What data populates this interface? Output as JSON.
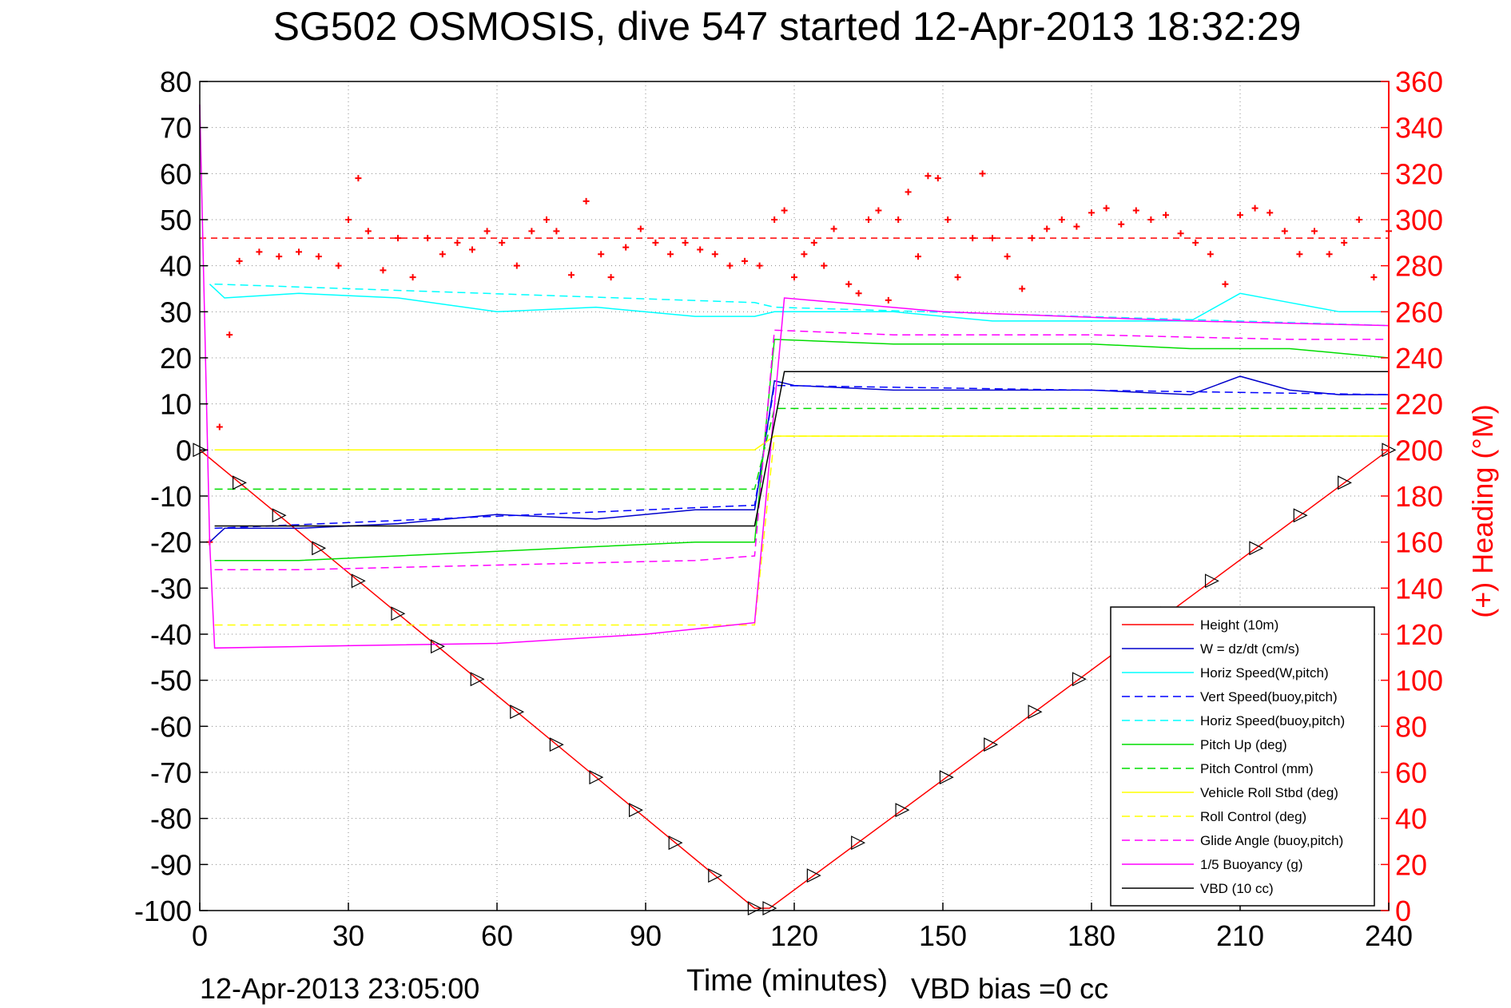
{
  "chart_data": {
    "type": "line",
    "title": "SG502 OSMOSIS, dive 547 started 12-Apr-2013 18:32:29",
    "xlabel": "Time (minutes)",
    "ylabel_right": "(+) Heading (°M)",
    "footer_left": "12-Apr-2013 23:05:00",
    "footer_right": "VBD bias =0 cc",
    "xlim": [
      0,
      240
    ],
    "ylim_left": [
      -100,
      80
    ],
    "ylim_right": [
      0,
      360
    ],
    "xticks": [
      0,
      30,
      60,
      90,
      120,
      150,
      180,
      210,
      240
    ],
    "yticks_left": [
      80,
      70,
      60,
      50,
      40,
      30,
      20,
      10,
      0,
      -10,
      -20,
      -30,
      -40,
      -50,
      -60,
      -70,
      -80,
      -90,
      -100
    ],
    "yticks_right": [
      360,
      340,
      320,
      300,
      280,
      260,
      240,
      220,
      200,
      180,
      160,
      140,
      120,
      100,
      80,
      60,
      40,
      20,
      0
    ],
    "grid": true,
    "legend_position": "bottom-right",
    "colors": {
      "heading_axis": "#ff0000"
    },
    "series": [
      {
        "name": "Height (10m)",
        "color": "#ff0000",
        "dash": "solid",
        "x": [
          0,
          112,
          115,
          240
        ],
        "y": [
          0,
          -99.5,
          -99.5,
          0
        ]
      },
      {
        "name": "W = dz/dt (cm/s)",
        "color": "#0000cc",
        "dash": "solid",
        "x": [
          2,
          5,
          20,
          40,
          60,
          80,
          100,
          112,
          116,
          120,
          140,
          160,
          180,
          200,
          210,
          220,
          230,
          240
        ],
        "y": [
          -20,
          -17,
          -17,
          -16,
          -14,
          -15,
          -13,
          -13,
          15,
          14,
          13,
          13,
          13,
          12,
          16,
          13,
          12,
          12
        ]
      },
      {
        "name": "Horiz Speed(W,pitch)",
        "color": "#00ffff",
        "dash": "solid",
        "x": [
          2,
          5,
          20,
          40,
          60,
          80,
          100,
          112,
          116,
          120,
          140,
          160,
          180,
          200,
          210,
          220,
          230,
          240
        ],
        "y": [
          36,
          33,
          34,
          33,
          30,
          31,
          29,
          29,
          30,
          30,
          30,
          28,
          28,
          28,
          34,
          32,
          30,
          30
        ]
      },
      {
        "name": "Vert Speed(buoy,pitch)",
        "color": "#0000ff",
        "dash": "dashed",
        "x": [
          3,
          112,
          116,
          240
        ],
        "y": [
          -17,
          -12,
          14,
          12
        ]
      },
      {
        "name": "Horiz Speed(buoy,pitch)",
        "color": "#00ffff",
        "dash": "dashed",
        "x": [
          3,
          112,
          116,
          240
        ],
        "y": [
          36,
          32,
          31,
          27
        ]
      },
      {
        "name": "Pitch Up (deg)",
        "color": "#00dd00",
        "dash": "solid",
        "x": [
          3,
          20,
          40,
          60,
          80,
          100,
          112,
          116,
          140,
          160,
          180,
          200,
          220,
          240
        ],
        "y": [
          -24,
          -24,
          -23,
          -22,
          -21,
          -20,
          -20,
          24,
          23,
          23,
          23,
          22,
          22,
          20
        ]
      },
      {
        "name": "Pitch Control (mm)",
        "color": "#00dd00",
        "dash": "dashed",
        "x": [
          3,
          112,
          116,
          240
        ],
        "y": [
          -8.5,
          -8.5,
          9,
          9
        ]
      },
      {
        "name": "Vehicle Roll Stbd (deg)",
        "color": "#ffff00",
        "dash": "solid",
        "x": [
          3,
          112,
          116,
          240
        ],
        "y": [
          0,
          0,
          3,
          3
        ]
      },
      {
        "name": "Roll Control (deg)",
        "color": "#ffff00",
        "dash": "dashed",
        "x": [
          3,
          112,
          116,
          240
        ],
        "y": [
          -38,
          -38,
          3,
          3
        ]
      },
      {
        "name": "Glide Angle (buoy,pitch)",
        "color": "#ff00ff",
        "dash": "dashed",
        "x": [
          3,
          20,
          60,
          100,
          112,
          116,
          140,
          180,
          220,
          240
        ],
        "y": [
          -26,
          -26,
          -25,
          -24,
          -23,
          26,
          25,
          25,
          24,
          24
        ]
      },
      {
        "name": "1/5 Buoyancy (g)",
        "color": "#ff00ff",
        "dash": "solid",
        "x": [
          0,
          2,
          3,
          30,
          60,
          90,
          112,
          118,
          150,
          200,
          240
        ],
        "y": [
          75,
          -20,
          -43,
          -42.5,
          -42,
          -40,
          -37.5,
          33,
          30,
          28,
          27
        ]
      },
      {
        "name": "VBD (10 cc)",
        "color": "#000000",
        "dash": "solid",
        "x": [
          3,
          112,
          118,
          240
        ],
        "y": [
          -16.5,
          -16.5,
          17,
          17
        ]
      }
    ],
    "heading": {
      "name": "Heading",
      "color": "#ff0000",
      "marker": "+",
      "mean": 292,
      "x": [
        2,
        4,
        6,
        8,
        12,
        16,
        20,
        24,
        28,
        30,
        32,
        34,
        37,
        40,
        43,
        46,
        49,
        52,
        55,
        58,
        61,
        64,
        67,
        70,
        72,
        75,
        78,
        81,
        83,
        86,
        89,
        92,
        95,
        98,
        101,
        104,
        107,
        110,
        113,
        116,
        118,
        120,
        122,
        124,
        126,
        128,
        131,
        133,
        135,
        137,
        139,
        141,
        143,
        145,
        147,
        149,
        151,
        153,
        156,
        158,
        160,
        163,
        166,
        168,
        171,
        174,
        177,
        180,
        183,
        186,
        189,
        192,
        195,
        198,
        201,
        204,
        207,
        210,
        213,
        216,
        219,
        222,
        225,
        228,
        231,
        234,
        237,
        240
      ],
      "y": [
        160,
        210,
        250,
        282,
        286,
        284,
        286,
        284,
        280,
        300,
        318,
        295,
        278,
        292,
        275,
        292,
        285,
        290,
        287,
        295,
        290,
        280,
        295,
        300,
        295,
        276,
        308,
        285,
        275,
        288,
        296,
        290,
        285,
        290,
        287,
        285,
        280,
        282,
        280,
        300,
        304,
        275,
        285,
        290,
        280,
        296,
        272,
        268,
        300,
        304,
        265,
        300,
        312,
        284,
        319,
        318,
        300,
        275,
        292,
        320,
        292,
        284,
        270,
        292,
        296,
        300,
        297,
        303,
        305,
        298,
        304,
        300,
        302,
        294,
        290,
        285,
        272,
        302,
        305,
        303,
        295,
        285,
        295,
        285,
        290,
        300,
        275,
        295
      ]
    }
  }
}
